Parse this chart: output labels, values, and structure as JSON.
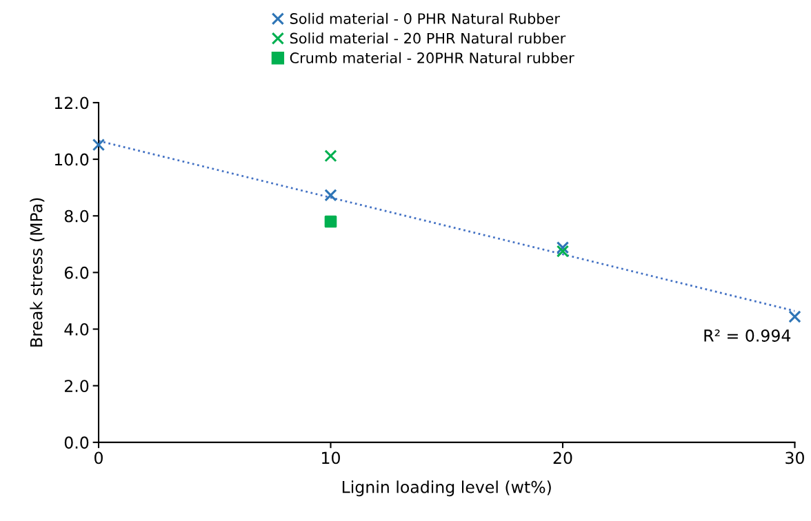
{
  "chart_data": {
    "type": "scatter",
    "xlabel": "Lignin loading level (wt%)",
    "ylabel": "Break stress (MPa)",
    "series": [
      {
        "name": "Solid material - 0 PHR Natural Rubber",
        "color": "#2e75b6",
        "marker": "cross",
        "x": [
          0,
          10,
          20,
          30
        ],
        "values": [
          10.51,
          8.73,
          6.88,
          4.44
        ]
      },
      {
        "name": "Solid material - 20 PHR Natural rubber",
        "color": "#00b050",
        "marker": "cross",
        "x": [
          10,
          20
        ],
        "values": [
          10.12,
          6.75
        ]
      },
      {
        "name": "Crumb material - 20PHR Natural rubber",
        "color": "#00b050",
        "marker": "square",
        "x": [
          10
        ],
        "values": [
          7.8
        ]
      },
      {
        "type": "line",
        "color": "#4472c4",
        "line_style": "dotted",
        "marker": "none",
        "x": [
          0,
          30
        ],
        "values": [
          10.65,
          4.64
        ]
      }
    ],
    "annotations": [
      "R² = 0.994"
    ],
    "xlim": [
      0,
      30
    ],
    "xticks": [
      0,
      10,
      20,
      30
    ],
    "ylim": [
      0,
      12
    ],
    "yticks": [
      {
        "value": 0,
        "label": "0.0"
      },
      {
        "value": 2,
        "label": "2.0"
      },
      {
        "value": 4,
        "label": "4.0"
      },
      {
        "value": 6,
        "label": "6.0"
      },
      {
        "value": 8,
        "label": "8.0"
      },
      {
        "value": 10,
        "label": "10.0"
      },
      {
        "value": 12,
        "label": "12.0"
      }
    ],
    "grid": false,
    "legend": "top"
  }
}
